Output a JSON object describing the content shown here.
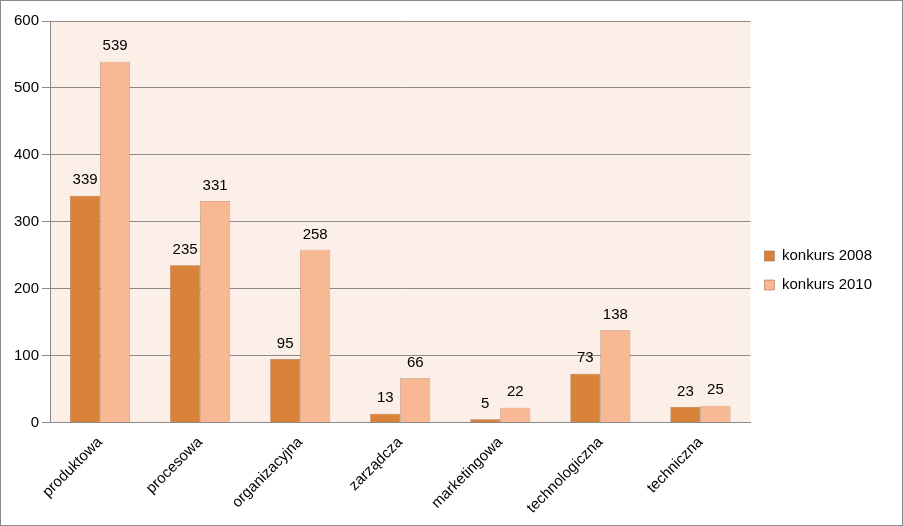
{
  "chart_data": {
    "type": "bar",
    "categories": [
      "produktowa",
      "procesowa",
      "organizacyjna",
      "zarządcza",
      "marketingowa",
      "technologiczna",
      "techniczna"
    ],
    "series": [
      {
        "name": "konkurs 2008",
        "color": "#d9823a",
        "values": [
          339,
          235,
          95,
          13,
          5,
          73,
          23
        ]
      },
      {
        "name": "konkurs 2010",
        "color": "#f9b894",
        "values": [
          539,
          331,
          258,
          66,
          22,
          138,
          25
        ]
      }
    ],
    "ylim": [
      0,
      600
    ],
    "yticks": [
      0,
      100,
      200,
      300,
      400,
      500,
      600
    ],
    "grid": true,
    "legend": "right",
    "data_labels": true
  }
}
